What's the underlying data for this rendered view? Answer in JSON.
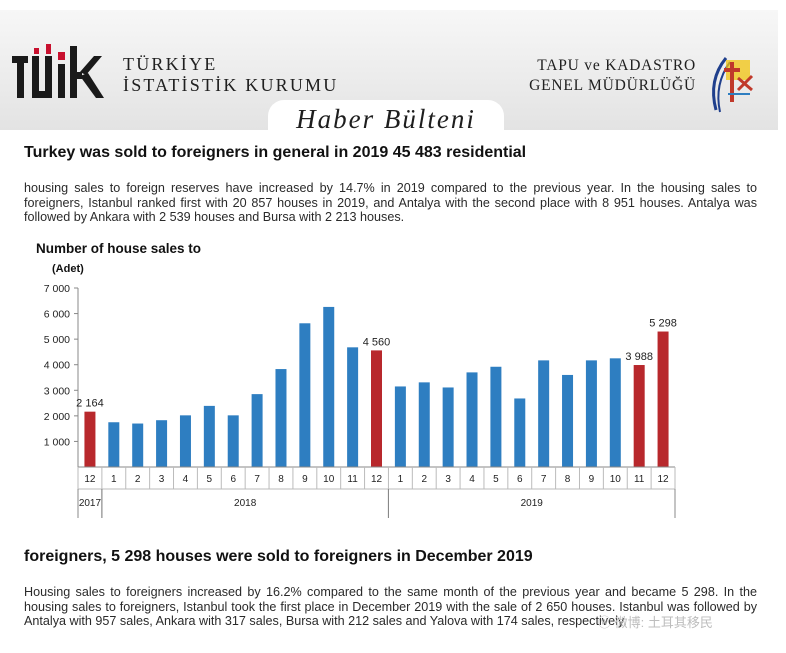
{
  "header": {
    "org_line1": "TÜRKİYE",
    "org_line2": "İSTATİSTİK KURUMU",
    "partner_line1": "TAPU ve KADASTRO",
    "partner_line2": "GENEL MÜDÜRLÜĞÜ",
    "bulletin": "Haber Bülteni",
    "logo_color": "#1a1a1a",
    "logo_accent": "#c8102e"
  },
  "article1": {
    "heading": "Turkey was sold to foreigners in general in 2019 45 483 residential",
    "body": "housing sales to foreign reserves have increased by 14.7% in 2019 compared to the previous year. In the housing sales to foreigners, Istanbul ranked first with 20 857 houses in 2019, and Antalya with the second place with 8 951 houses. Antalya was followed by Ankara with 2 539 houses and Bursa with 2 213 houses."
  },
  "article2": {
    "heading": "foreigners, 5 298 houses were sold to foreigners in December 2019",
    "body": "Housing sales to foreigners increased by 16.2% compared to the same month of the previous year and became 5 298. In the housing sales to foreigners, Istanbul took the first place in December 2019 with the sale of 2 650 houses. Istanbul was followed by Antalya with 957 sales, Ankara with 317 sales, Bursa with 212 sales and Yalova with 174 sales, respectively."
  },
  "chart_data": {
    "type": "bar",
    "title": "Number of house sales to",
    "ylabel": "(Adet)",
    "ylim": [
      0,
      7000
    ],
    "yticks": [
      1000,
      2000,
      3000,
      4000,
      5000,
      6000,
      7000
    ],
    "ytick_labels": [
      "1 000",
      "2 000",
      "3 000",
      "4 000",
      "5 000",
      "6 000",
      "7 000"
    ],
    "categories": [
      "12",
      "1",
      "2",
      "3",
      "4",
      "5",
      "6",
      "7",
      "8",
      "9",
      "10",
      "11",
      "12",
      "1",
      "2",
      "3",
      "4",
      "5",
      "6",
      "7",
      "8",
      "9",
      "10",
      "11",
      "12"
    ],
    "values": [
      2164,
      1750,
      1700,
      1830,
      2020,
      2390,
      2020,
      2850,
      3830,
      5620,
      6260,
      4680,
      4560,
      3150,
      3310,
      3110,
      3700,
      3920,
      2680,
      4170,
      3600,
      4170,
      4250,
      3988,
      5298
    ],
    "highlight": [
      true,
      false,
      false,
      false,
      false,
      false,
      false,
      false,
      false,
      false,
      false,
      false,
      true,
      false,
      false,
      false,
      false,
      false,
      false,
      false,
      false,
      false,
      false,
      true,
      true
    ],
    "data_labels": [
      "2 164",
      "",
      "",
      "",
      "",
      "",
      "",
      "",
      "",
      "",
      "",
      "",
      "4 560",
      "",
      "",
      "",
      "",
      "",
      "",
      "",
      "",
      "",
      "",
      "3 988",
      "5 298"
    ],
    "year_groups": [
      {
        "label": "2017",
        "start": 0,
        "count": 1
      },
      {
        "label": "2018",
        "start": 1,
        "count": 12
      },
      {
        "label": "2019",
        "start": 13,
        "count": 12
      }
    ],
    "colors": {
      "bar": "#2e7ec1",
      "highlight": "#b8282c"
    },
    "grid": false
  },
  "watermark": "ⓦ 微博: 土耳其移民"
}
